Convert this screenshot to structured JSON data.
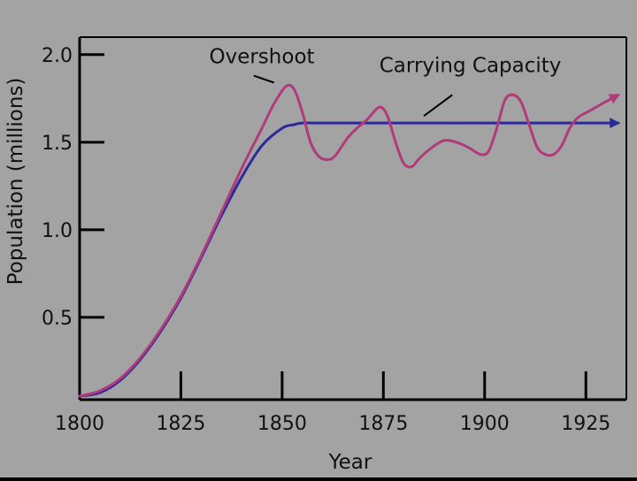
{
  "chart_data": {
    "type": "line",
    "title": "",
    "xlabel": "Year",
    "ylabel": "Population (millions)",
    "xlim": [
      1800,
      1935
    ],
    "ylim": [
      0.03,
      2.1
    ],
    "x_ticks": [
      1800,
      1825,
      1850,
      1875,
      1900,
      1925
    ],
    "y_ticks": [
      0.5,
      1.0,
      1.5,
      2.0
    ],
    "x_tick_labels": [
      "1800",
      "1825",
      "1850",
      "1875",
      "1900",
      "1925"
    ],
    "y_tick_labels": [
      "0.5",
      "1.0",
      "1.5",
      "2.0"
    ],
    "grid": false,
    "legend": "none",
    "colors": {
      "background": "#a3a3a3",
      "overshoot": "#b03a7a",
      "carrying_capacity": "#2a2a9a"
    },
    "annotations": [
      {
        "text": "Overshoot",
        "x": 1832,
        "y": 1.95
      },
      {
        "text": "Carrying Capacity",
        "x": 1874,
        "y": 1.9
      }
    ],
    "series": [
      {
        "name": "Overshoot",
        "x": [
          1800,
          1805,
          1810,
          1815,
          1820,
          1825,
          1830,
          1835,
          1840,
          1845,
          1848,
          1851,
          1853,
          1855,
          1857,
          1859,
          1861,
          1863,
          1866,
          1868,
          1871,
          1874,
          1876,
          1878,
          1880,
          1882,
          1884,
          1887,
          1890,
          1893,
          1896,
          1899,
          1901,
          1903,
          1905,
          1907,
          1909,
          1911,
          1913,
          1915,
          1917,
          1919,
          1921,
          1923,
          1926,
          1929,
          1933
        ],
        "values": [
          0.05,
          0.08,
          0.15,
          0.27,
          0.43,
          0.62,
          0.85,
          1.1,
          1.35,
          1.58,
          1.72,
          1.82,
          1.8,
          1.67,
          1.5,
          1.42,
          1.4,
          1.42,
          1.52,
          1.57,
          1.63,
          1.7,
          1.65,
          1.5,
          1.38,
          1.36,
          1.41,
          1.47,
          1.51,
          1.5,
          1.47,
          1.43,
          1.45,
          1.58,
          1.74,
          1.77,
          1.73,
          1.6,
          1.47,
          1.43,
          1.43,
          1.48,
          1.58,
          1.64,
          1.68,
          1.72,
          1.77
        ]
      },
      {
        "name": "Carrying Capacity",
        "x": [
          1800,
          1805,
          1810,
          1815,
          1820,
          1825,
          1830,
          1835,
          1840,
          1845,
          1850,
          1853,
          1855,
          1860,
          1880,
          1900,
          1920,
          1933
        ],
        "values": [
          0.05,
          0.07,
          0.14,
          0.26,
          0.42,
          0.61,
          0.84,
          1.08,
          1.3,
          1.48,
          1.58,
          1.6,
          1.61,
          1.61,
          1.61,
          1.61,
          1.61,
          1.61
        ]
      }
    ]
  }
}
